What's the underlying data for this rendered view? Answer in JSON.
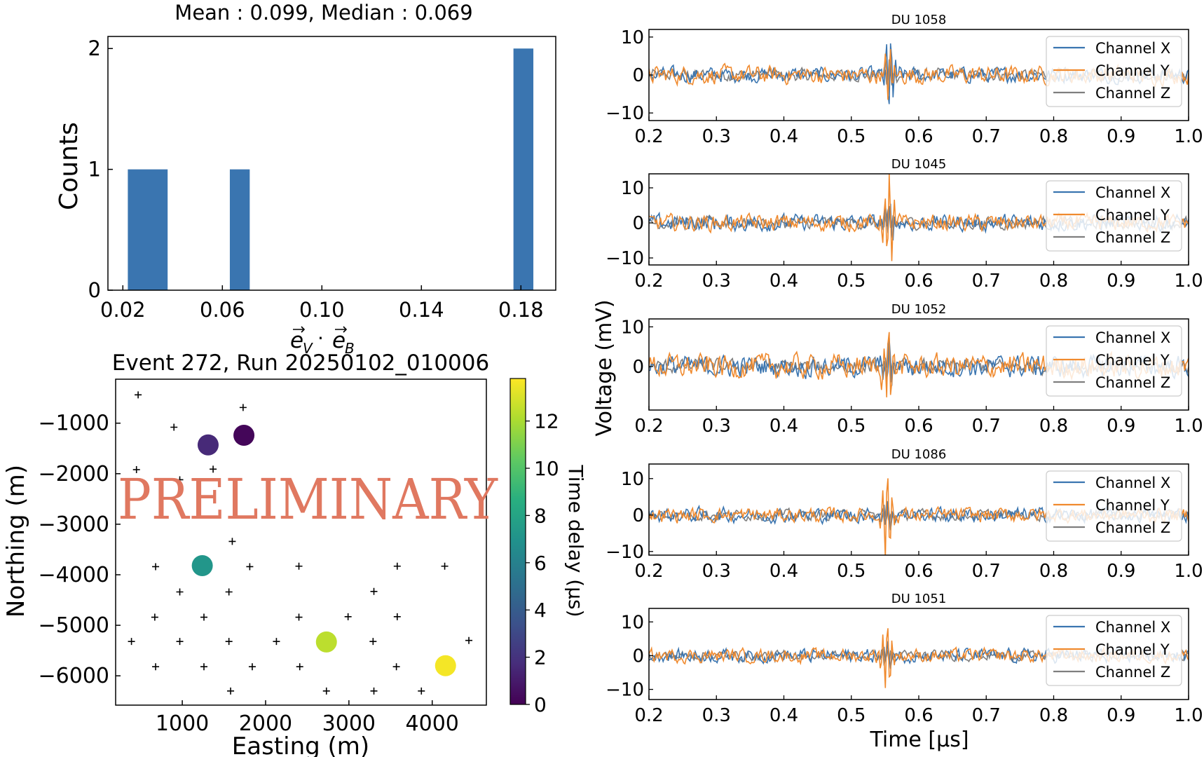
{
  "colors": {
    "bar": "#3a75b0",
    "channel_x": "#3a75b0",
    "channel_y": "#f08a2e",
    "channel_z": "#7f7f7f",
    "watermark": "#e07860"
  },
  "watermark": "PRELIMINARY",
  "chart_data": [
    {
      "type": "bar",
      "title": "Mean : 0.099, Median : 0.069",
      "xlabel": "e_V · e_B",
      "ylabel": "Counts",
      "bars": [
        {
          "x0": 0.022,
          "x1": 0.038,
          "value": 1
        },
        {
          "x0": 0.063,
          "x1": 0.071,
          "value": 1
        },
        {
          "x0": 0.177,
          "x1": 0.185,
          "value": 2
        }
      ],
      "xlim": [
        0.014,
        0.194
      ],
      "ylim": [
        0,
        2.1
      ],
      "xticks": [
        0.02,
        0.06,
        0.1,
        0.14,
        0.18
      ],
      "xtick_labels": [
        "0.02",
        "0.06",
        "0.10",
        "0.14",
        "0.18"
      ],
      "yticks": [
        0,
        1,
        2
      ],
      "ytick_labels": [
        "0",
        "1",
        "2"
      ]
    },
    {
      "type": "scatter",
      "title": "Event 272, Run 20250102_010006",
      "xlabel": "Easting (m)",
      "ylabel": "Northing (m)",
      "xlim": [
        200,
        4650
      ],
      "ylim": [
        -6580,
        -130
      ],
      "xticks": [
        1000,
        2000,
        3000,
        4000
      ],
      "xtick_labels": [
        "1000",
        "2000",
        "3000",
        "4000"
      ],
      "yticks": [
        -1000,
        -2000,
        -3000,
        -4000,
        -5000,
        -6000
      ],
      "ytick_labels": [
        "−1000",
        "−2000",
        "−3000",
        "−4000",
        "−5000",
        "−6000"
      ],
      "colorbar": {
        "label": "Time delay (μs)",
        "range": [
          0,
          13.8
        ],
        "ticks": [
          0,
          2,
          4,
          6,
          8,
          10,
          12
        ],
        "tick_labels": [
          "0",
          "2",
          "4",
          "6",
          "8",
          "10",
          "12"
        ],
        "colormap": "viridis"
      },
      "antennas": [
        [
          470,
          -440
        ],
        [
          1730,
          -690
        ],
        [
          900,
          -1080
        ],
        [
          450,
          -1920
        ],
        [
          1370,
          -1910
        ],
        [
          970,
          -2120
        ],
        [
          1600,
          -3340
        ],
        [
          680,
          -3840
        ],
        [
          1250,
          -3840
        ],
        [
          1810,
          -3840
        ],
        [
          2400,
          -3830
        ],
        [
          3580,
          -3830
        ],
        [
          4150,
          -3830
        ],
        [
          970,
          -4340
        ],
        [
          1560,
          -4340
        ],
        [
          3300,
          -4330
        ],
        [
          670,
          -4840
        ],
        [
          1260,
          -4840
        ],
        [
          2400,
          -4840
        ],
        [
          2990,
          -4830
        ],
        [
          3580,
          -4830
        ],
        [
          390,
          -5320
        ],
        [
          970,
          -5320
        ],
        [
          1560,
          -5320
        ],
        [
          2130,
          -5320
        ],
        [
          3290,
          -5320
        ],
        [
          4440,
          -5300
        ],
        [
          680,
          -5820
        ],
        [
          1260,
          -5820
        ],
        [
          1840,
          -5820
        ],
        [
          2410,
          -5820
        ],
        [
          3570,
          -5820
        ],
        [
          1580,
          -6300
        ],
        [
          2730,
          -6300
        ],
        [
          3300,
          -6300
        ],
        [
          3870,
          -6300
        ]
      ],
      "events": [
        {
          "easting": 1310,
          "northing": -1430,
          "delay": 1.6
        },
        {
          "easting": 1740,
          "northing": -1240,
          "delay": 0.2
        },
        {
          "easting": 1240,
          "northing": -3820,
          "delay": 7.2
        },
        {
          "easting": 2730,
          "northing": -5330,
          "delay": 12.4
        },
        {
          "easting": 4160,
          "northing": -5800,
          "delay": 13.6
        }
      ]
    },
    {
      "type": "line",
      "title": "DU 1058",
      "series": [
        "Channel X",
        "Channel Y",
        "Channel Z"
      ],
      "xlim": [
        0.2,
        1.0
      ],
      "ylim": [
        -12,
        12
      ],
      "yticks": [
        10,
        0,
        -10
      ],
      "ytick_labels": [
        "10",
        "0",
        "−10"
      ],
      "xticks": [
        0.2,
        0.3,
        0.4,
        0.5,
        0.6,
        0.7,
        0.8,
        0.9,
        1.0
      ],
      "xtick_labels": [
        "0.2",
        "0.3",
        "0.4",
        "0.5",
        "0.6",
        "0.7",
        "0.8",
        "0.9",
        "1.0"
      ],
      "pulse_time": 0.557,
      "noise_amplitude": [
        2.2,
        2.6,
        1.8
      ],
      "pulse_amplitude": [
        11,
        6,
        4
      ]
    },
    {
      "type": "line",
      "title": "DU 1045",
      "series": [
        "Channel X",
        "Channel Y",
        "Channel Z"
      ],
      "xlim": [
        0.2,
        1.0
      ],
      "ylim": [
        -12,
        14
      ],
      "yticks": [
        10,
        0,
        -10
      ],
      "ytick_labels": [
        "10",
        "0",
        "−10"
      ],
      "xticks": [
        0.2,
        0.3,
        0.4,
        0.5,
        0.6,
        0.7,
        0.8,
        0.9,
        1.0
      ],
      "xtick_labels": [
        "0.2",
        "0.3",
        "0.4",
        "0.5",
        "0.6",
        "0.7",
        "0.8",
        "0.9",
        "1.0"
      ],
      "pulse_time": 0.556,
      "noise_amplitude": [
        2.6,
        2.6,
        2.0
      ],
      "pulse_amplitude": [
        5,
        13,
        4
      ]
    },
    {
      "type": "line",
      "title": "DU 1052",
      "series": [
        "Channel X",
        "Channel Y",
        "Channel Z"
      ],
      "xlim": [
        0.2,
        1.0
      ],
      "ylim": [
        -11,
        12
      ],
      "yticks": [
        10,
        0
      ],
      "ytick_labels": [
        "10",
        "0"
      ],
      "xticks": [
        0.2,
        0.3,
        0.4,
        0.5,
        0.6,
        0.7,
        0.8,
        0.9,
        1.0
      ],
      "xtick_labels": [
        "0.2",
        "0.3",
        "0.4",
        "0.5",
        "0.6",
        "0.7",
        "0.8",
        "0.9",
        "1.0"
      ],
      "pulse_time": 0.555,
      "noise_amplitude": [
        3.0,
        3.4,
        2.0
      ],
      "pulse_amplitude": [
        5,
        10,
        4
      ]
    },
    {
      "type": "line",
      "title": "DU 1086",
      "series": [
        "Channel X",
        "Channel Y",
        "Channel Z"
      ],
      "xlim": [
        0.2,
        1.0
      ],
      "ylim": [
        -11,
        14
      ],
      "yticks": [
        10,
        0,
        -10
      ],
      "ytick_labels": [
        "10",
        "0",
        "−10"
      ],
      "xticks": [
        0.2,
        0.3,
        0.4,
        0.5,
        0.6,
        0.7,
        0.8,
        0.9,
        1.0
      ],
      "xtick_labels": [
        "0.2",
        "0.3",
        "0.4",
        "0.5",
        "0.6",
        "0.7",
        "0.8",
        "0.9",
        "1.0"
      ],
      "pulse_time": 0.553,
      "noise_amplitude": [
        2.2,
        2.2,
        1.6
      ],
      "pulse_amplitude": [
        4,
        12,
        3
      ]
    },
    {
      "type": "line",
      "title": "DU 1051",
      "series": [
        "Channel X",
        "Channel Y",
        "Channel Z"
      ],
      "xlim": [
        0.2,
        1.0
      ],
      "ylim": [
        -13,
        14
      ],
      "yticks": [
        10,
        0,
        -10
      ],
      "ytick_labels": [
        "10",
        "0",
        "−10"
      ],
      "xticks": [
        0.2,
        0.3,
        0.4,
        0.5,
        0.6,
        0.7,
        0.8,
        0.9,
        1.0
      ],
      "xtick_labels": [
        "0.2",
        "0.3",
        "0.4",
        "0.5",
        "0.6",
        "0.7",
        "0.8",
        "0.9",
        "1.0"
      ],
      "pulse_time": 0.553,
      "noise_amplitude": [
        2.2,
        2.2,
        1.6
      ],
      "pulse_amplitude": [
        4,
        12,
        3
      ]
    }
  ],
  "traces_common": {
    "ylabel": "Voltage (mV)",
    "xlabel": "Time [μs]"
  }
}
